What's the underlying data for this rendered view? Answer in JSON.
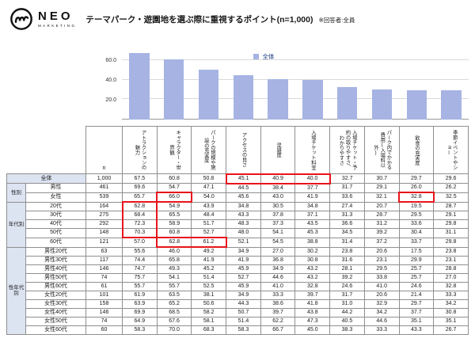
{
  "brand": {
    "name": "NEO",
    "sub": "MARKETING"
  },
  "header": {
    "title": "テーマパーク・遊園地を選ぶ際に重視するポイント(n=1,000)",
    "note": "※回答者:全員"
  },
  "colors": {
    "bar": "#a6b3e3",
    "accent": "#e8131b",
    "shade": "#dce3f1",
    "grid": "#d9d9d9"
  },
  "chart_data": {
    "type": "bar",
    "categories": [
      "アトラクションの魅力",
      "キャラクター・世界観",
      "パークの規模や施設の充実度",
      "アクセスの良さ",
      "混雑度",
      "入場チケット料金",
      "入場チケット・予約の取りやすさ、わかりやすさ",
      "パーク内でかかる費用(入場料以外)",
      "飲食の充実度",
      "季節イベントやショー"
    ],
    "values": [
      67.5,
      60.8,
      50.8,
      45.1,
      40.9,
      40.0,
      32.7,
      30.7,
      29.7,
      29.6
    ],
    "legend": "全体",
    "ylim": [
      0,
      80
    ],
    "yticks": [
      60.0,
      40.0,
      20.0
    ],
    "grid": true,
    "legend_position": "inside-top"
  },
  "table": {
    "n_header": "n",
    "columns": [
      "アトラクションの魅力",
      "キャラクター・世界観",
      "パークの規模や施設の充実度",
      "アクセスの良さ",
      "混雑度",
      "入場チケット料金",
      "入場チケット・予約の取りやすさ、わかりやすさ",
      "パーク内でかかる費用(入場料以外)",
      "飲食の充実度",
      "季節イベントやショー"
    ],
    "groups": [
      {
        "label": "性別",
        "start": 1,
        "count": 2
      },
      {
        "label": "年代別",
        "start": 3,
        "count": 5
      },
      {
        "label": "性年代別",
        "start": 8,
        "count": 10
      }
    ],
    "rows": [
      {
        "label": "全体",
        "n": "1,000",
        "values": [
          67.5,
          60.8,
          50.8,
          45.1,
          40.9,
          40.0,
          32.7,
          30.7,
          29.7,
          29.6
        ]
      },
      {
        "label": "男性",
        "n": "461",
        "values": [
          69.6,
          54.7,
          47.1,
          44.5,
          38.4,
          37.7,
          31.7,
          29.1,
          26.0,
          26.2
        ]
      },
      {
        "label": "女性",
        "n": "539",
        "values": [
          65.7,
          66.0,
          54.0,
          45.6,
          43.0,
          41.9,
          33.6,
          32.1,
          32.8,
          32.5
        ]
      },
      {
        "label": "20代",
        "n": "164",
        "values": [
          62.8,
          54.9,
          43.9,
          34.8,
          30.5,
          34.8,
          27.4,
          20.7,
          19.5,
          28.7
        ]
      },
      {
        "label": "30代",
        "n": "275",
        "values": [
          68.4,
          65.5,
          48.4,
          43.3,
          37.8,
          37.1,
          31.3,
          28.7,
          29.5,
          29.1
        ]
      },
      {
        "label": "40代",
        "n": "292",
        "values": [
          72.3,
          58.9,
          51.7,
          48.3,
          37.3,
          43.5,
          36.6,
          31.2,
          33.6,
          29.8
        ]
      },
      {
        "label": "50代",
        "n": "148",
        "values": [
          70.3,
          60.8,
          52.7,
          48.0,
          54.1,
          45.3,
          34.5,
          39.2,
          30.4,
          31.1
        ]
      },
      {
        "label": "60代",
        "n": "121",
        "values": [
          57.0,
          62.8,
          61.2,
          52.1,
          54.5,
          38.8,
          31.4,
          37.2,
          33.7,
          29.8
        ]
      },
      {
        "label": "男性20代",
        "n": "63",
        "values": [
          55.6,
          46.0,
          49.2,
          34.9,
          27.0,
          30.2,
          23.8,
          20.6,
          17.5,
          23.8
        ]
      },
      {
        "label": "男性30代",
        "n": "117",
        "values": [
          74.4,
          65.8,
          41.9,
          41.9,
          36.8,
          30.8,
          31.6,
          23.1,
          29.9,
          23.1
        ]
      },
      {
        "label": "男性40代",
        "n": "146",
        "values": [
          74.7,
          49.3,
          45.2,
          45.9,
          34.9,
          43.2,
          28.1,
          29.5,
          25.7,
          28.8
        ]
      },
      {
        "label": "男性50代",
        "n": "74",
        "values": [
          75.7,
          54.1,
          51.4,
          52.7,
          44.6,
          43.2,
          39.2,
          33.8,
          25.7,
          27.0
        ]
      },
      {
        "label": "男性60代",
        "n": "61",
        "values": [
          55.7,
          55.7,
          52.5,
          45.9,
          41.0,
          32.8,
          24.6,
          41.0,
          24.6,
          32.8
        ]
      },
      {
        "label": "女性20代",
        "n": "101",
        "values": [
          61.9,
          63.5,
          38.1,
          34.9,
          33.3,
          39.7,
          31.7,
          20.6,
          21.4,
          33.3
        ]
      },
      {
        "label": "女性30代",
        "n": "158",
        "values": [
          63.9,
          65.2,
          50.6,
          44.3,
          38.6,
          41.8,
          31.0,
          32.9,
          29.7,
          34.2
        ]
      },
      {
        "label": "女性40代",
        "n": "146",
        "values": [
          69.9,
          68.5,
          58.2,
          50.7,
          39.7,
          43.8,
          44.2,
          34.2,
          37.7,
          30.8
        ]
      },
      {
        "label": "女性50代",
        "n": "74",
        "values": [
          64.9,
          67.6,
          58.1,
          51.4,
          62.2,
          47.3,
          40.5,
          44.6,
          35.1,
          35.1
        ]
      },
      {
        "label": "女性60代",
        "n": "60",
        "values": [
          58.3,
          70.0,
          68.3,
          58.3,
          66.7,
          45.0,
          38.3,
          33.3,
          43.3,
          26.7
        ]
      }
    ],
    "highlights": [
      {
        "r1": 0,
        "c1": 3,
        "r2": 0,
        "c2": 5
      },
      {
        "r1": 2,
        "c1": 1,
        "r2": 2,
        "c2": 1
      },
      {
        "r1": 2,
        "c1": 8,
        "r2": 2,
        "c2": 8
      },
      {
        "r1": 3,
        "c1": 0,
        "r2": 6,
        "c2": 0
      },
      {
        "r1": 7,
        "c1": 1,
        "r2": 7,
        "c2": 2
      }
    ]
  }
}
